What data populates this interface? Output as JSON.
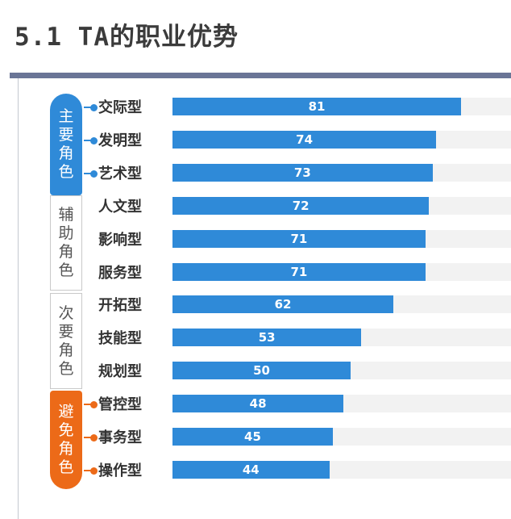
{
  "header": {
    "title": "5.1 TA的职业优势"
  },
  "groups": [
    {
      "label": "主要角色",
      "chars": [
        "主",
        "要",
        "角",
        "色"
      ]
    },
    {
      "label": "辅助角色",
      "chars": [
        "辅",
        "助",
        "角",
        "色"
      ]
    },
    {
      "label": "次要角色",
      "chars": [
        "次",
        "要",
        "角",
        "色"
      ]
    },
    {
      "label": "避免角色",
      "chars": [
        "避",
        "免",
        "角",
        "色"
      ]
    }
  ],
  "colors": {
    "primary": "#2f8ad8",
    "avoid": "#ec6a18",
    "track": "#f2f2f2",
    "rule": "#6a7596"
  },
  "chart_data": {
    "type": "bar",
    "orientation": "horizontal",
    "categories": [
      "交际型",
      "发明型",
      "艺术型",
      "人文型",
      "影响型",
      "服务型",
      "开拓型",
      "技能型",
      "规划型",
      "管控型",
      "事务型",
      "操作型"
    ],
    "values": [
      81,
      74,
      73,
      72,
      71,
      71,
      62,
      53,
      50,
      48,
      45,
      44
    ],
    "category_groups": [
      "主要角色",
      "主要角色",
      "主要角色",
      "辅助角色",
      "辅助角色",
      "辅助角色",
      "次要角色",
      "次要角色",
      "次要角色",
      "避免角色",
      "避免角色",
      "避免角色"
    ],
    "xlim": [
      0,
      95
    ],
    "data_labels": true,
    "grid": false
  }
}
